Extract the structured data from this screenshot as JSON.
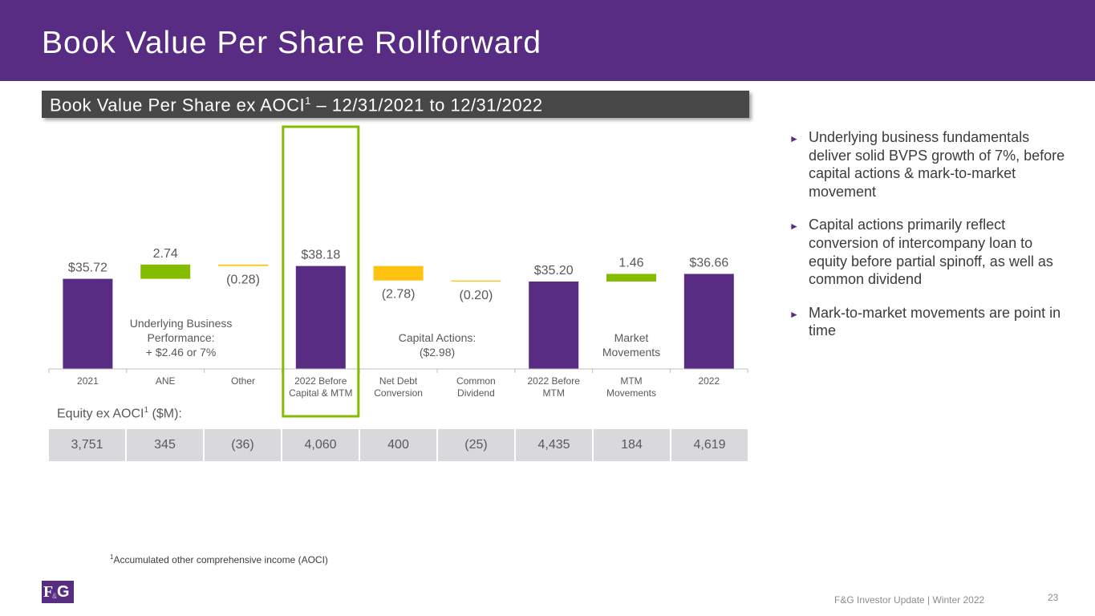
{
  "title": "Book Value Per Share Rollforward",
  "subtitle": {
    "prefix": "Book Value Per Share ex AOCI",
    "sup": "1",
    "suffix": " – 12/31/2021 to 12/31/2022"
  },
  "chart_data": {
    "type": "waterfall",
    "categories": [
      {
        "line1": "2021",
        "line2": ""
      },
      {
        "line1": "ANE",
        "line2": ""
      },
      {
        "line1": "Other",
        "line2": ""
      },
      {
        "line1": "2022 Before",
        "line2": "Capital & MTM"
      },
      {
        "line1": "Net Debt",
        "line2": "Conversion"
      },
      {
        "line1": "Common",
        "line2": "Dividend"
      },
      {
        "line1": "2022 Before",
        "line2": "MTM"
      },
      {
        "line1": "MTM",
        "line2": "Movements"
      },
      {
        "line1": "2022",
        "line2": ""
      }
    ],
    "bars": [
      {
        "kind": "total",
        "start": 0,
        "end": 35.72,
        "label": "$35.72",
        "label_pos": "above",
        "color": "#582c83"
      },
      {
        "kind": "increase",
        "start": 35.72,
        "end": 38.46,
        "label": "2.74",
        "label_pos": "above",
        "color": "#84bd00"
      },
      {
        "kind": "decrease",
        "start": 38.46,
        "end": 38.18,
        "label": "(0.28)",
        "label_pos": "below",
        "color": "#ffc20e"
      },
      {
        "kind": "total",
        "start": 0,
        "end": 38.18,
        "label": "$38.18",
        "label_pos": "above",
        "color": "#582c83"
      },
      {
        "kind": "decrease",
        "start": 38.18,
        "end": 35.4,
        "label": "(2.78)",
        "label_pos": "below",
        "color": "#ffc20e"
      },
      {
        "kind": "decrease",
        "start": 35.4,
        "end": 35.2,
        "label": "(0.20)",
        "label_pos": "below",
        "color": "#ffc20e"
      },
      {
        "kind": "total",
        "start": 0,
        "end": 35.2,
        "label": "$35.20",
        "label_pos": "above",
        "color": "#582c83"
      },
      {
        "kind": "increase",
        "start": 35.2,
        "end": 36.66,
        "label": "1.46",
        "label_pos": "above",
        "color": "#84bd00"
      },
      {
        "kind": "total",
        "start": 0,
        "end": 36.66,
        "label": "$36.66",
        "label_pos": "above",
        "color": "#582c83"
      }
    ],
    "annotations": [
      {
        "lines": [
          "Underlying Business",
          "Performance:",
          "+ $2.46 or 7%"
        ],
        "center_index": 1.2
      },
      {
        "lines": [
          "Capital Actions:",
          "($2.98)"
        ],
        "center_index": 4.5
      },
      {
        "lines": [
          "Market",
          "Movements"
        ],
        "center_index": 7.0
      }
    ],
    "highlight_index": 3,
    "highlight_color": "#84bd00"
  },
  "equity": {
    "label_prefix": "Equity ex AOCI",
    "label_sup": "1",
    "label_suffix": " ($M):",
    "values": [
      "3,751",
      "345",
      "(36)",
      "4,060",
      "400",
      "(25)",
      "4,435",
      "184",
      "4,619"
    ]
  },
  "bullets": [
    "Underlying business fundamentals deliver solid BVPS growth of 7%, before capital actions & mark-to-market movement",
    "Capital actions primarily reflect conversion of intercompany loan to equity before partial spinoff, as well as common dividend",
    "Mark-to-market movements are point in time"
  ],
  "bullet_marker": "►",
  "footnote": {
    "sup": "1",
    "text": "Accumulated other comprehensive income (AOCI)"
  },
  "logo": {
    "f": "F",
    "amp": "&",
    "g": "G"
  },
  "footer": "F&G Investor Update | Winter 2022",
  "page_number": "23",
  "colors": {
    "purple": "#582c83",
    "green": "#84bd00",
    "yellow": "#ffc20e",
    "dark_gray": "#474747",
    "table_gray": "#d9d9dc"
  }
}
